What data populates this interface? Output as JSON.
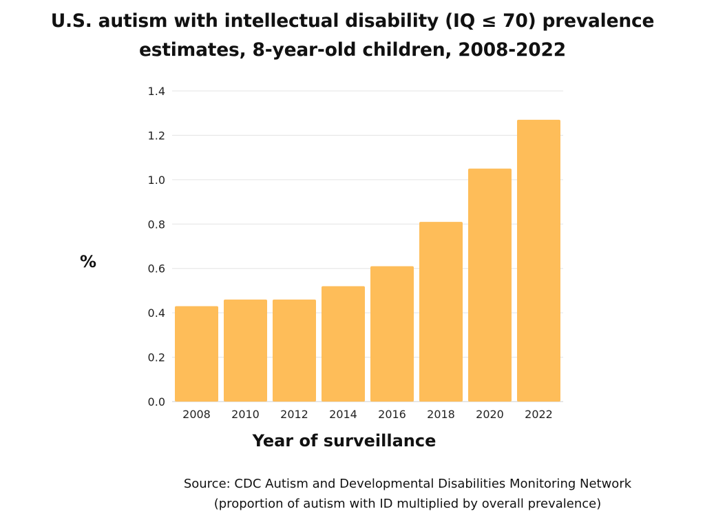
{
  "chart_data": {
    "type": "bar",
    "title_lines": [
      "U.S. autism with intellectual disability (IQ ≤ 70) prevalence",
      "estimates, 8-year-old children, 2008-2022"
    ],
    "xlabel": "Year of surveillance",
    "ylabel": "%",
    "categories": [
      "2008",
      "2010",
      "2012",
      "2014",
      "2016",
      "2018",
      "2020",
      "2022"
    ],
    "values": [
      0.43,
      0.46,
      0.46,
      0.52,
      0.61,
      0.81,
      1.05,
      1.27
    ],
    "ylim": [
      0,
      1.4
    ],
    "yticks": [
      "0.0",
      "0.2",
      "0.4",
      "0.6",
      "0.8",
      "1.0",
      "1.2",
      "1.4"
    ],
    "grid": true,
    "bar_color": "#FEBD59",
    "source_lines": [
      "Source: CDC Autism and Developmental Disabilities Monitoring Network",
      "(proportion of autism with ID multiplied by overall prevalence)"
    ]
  }
}
